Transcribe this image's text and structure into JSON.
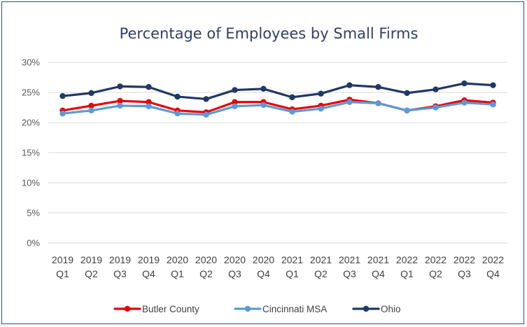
{
  "chart_data": {
    "type": "line",
    "title": "Percentage of Employees by Small Firms",
    "categories": [
      [
        "2019",
        "Q1"
      ],
      [
        "2019",
        "Q2"
      ],
      [
        "2019",
        "Q3"
      ],
      [
        "2019",
        "Q4"
      ],
      [
        "2020",
        "Q1"
      ],
      [
        "2020",
        "Q2"
      ],
      [
        "2020",
        "Q3"
      ],
      [
        "2020",
        "Q4"
      ],
      [
        "2021",
        "Q1"
      ],
      [
        "2021",
        "Q2"
      ],
      [
        "2021",
        "Q3"
      ],
      [
        "2021",
        "Q4"
      ],
      [
        "2022",
        "Q1"
      ],
      [
        "2022",
        "Q2"
      ],
      [
        "2022",
        "Q3"
      ],
      [
        "2022",
        "Q4"
      ]
    ],
    "y_ticks": [
      "0%",
      "5%",
      "10%",
      "15%",
      "20%",
      "25%",
      "30%"
    ],
    "ylim": [
      0,
      30
    ],
    "grid": true,
    "legend_position": "bottom",
    "series": [
      {
        "name": "Butler County",
        "color": "#e8000b",
        "values": [
          22.0,
          22.8,
          23.6,
          23.4,
          22.0,
          21.7,
          23.4,
          23.4,
          22.2,
          22.8,
          23.8,
          23.2,
          22.0,
          22.7,
          23.7,
          23.3
        ]
      },
      {
        "name": "Cincinnati MSA",
        "color": "#5b9bd5",
        "values": [
          21.5,
          22.0,
          22.8,
          22.7,
          21.5,
          21.3,
          22.7,
          22.9,
          21.8,
          22.3,
          23.4,
          23.2,
          22.0,
          22.5,
          23.3,
          23.0
        ]
      },
      {
        "name": "Ohio",
        "color": "#203864",
        "values": [
          24.4,
          24.9,
          26.0,
          25.9,
          24.3,
          23.9,
          25.4,
          25.6,
          24.2,
          24.8,
          26.2,
          25.9,
          24.9,
          25.5,
          26.5,
          26.2
        ]
      }
    ]
  }
}
